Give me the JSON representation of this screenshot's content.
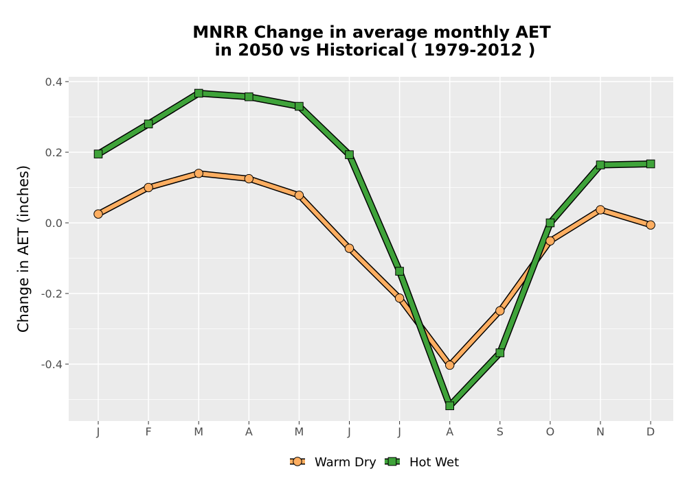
{
  "chart_data": {
    "type": "line",
    "title_line1": "MNRR  Change in average monthly AET",
    "title_line2": "in 2050 vs Historical ( 1979-2012 )",
    "xlabel": "",
    "ylabel": "Change in AET (inches)",
    "categories": [
      "J",
      "F",
      "M",
      "A",
      "M",
      "J",
      "J",
      "A",
      "S",
      "O",
      "N",
      "D"
    ],
    "ylim": [
      -0.56,
      0.42
    ],
    "yticks": [
      0.4,
      0.2,
      0.0,
      -0.2,
      -0.4
    ],
    "ytick_labels": [
      "0.4",
      "0.2",
      "0.0",
      "-0.2",
      "-0.4"
    ],
    "grid": true,
    "legend_position": "bottom",
    "series": [
      {
        "name": "Warm Dry",
        "color": "#FDAE61",
        "marker": "circle",
        "values": [
          0.025,
          0.1,
          0.14,
          0.125,
          0.078,
          -0.072,
          -0.213,
          -0.403,
          -0.249,
          -0.051,
          0.037,
          -0.006
        ]
      },
      {
        "name": "Hot Wet",
        "color": "#3FA33A",
        "marker": "square",
        "values": [
          0.195,
          0.28,
          0.367,
          0.357,
          0.33,
          0.193,
          -0.137,
          -0.518,
          -0.368,
          0.0,
          0.164,
          0.167
        ]
      }
    ]
  }
}
